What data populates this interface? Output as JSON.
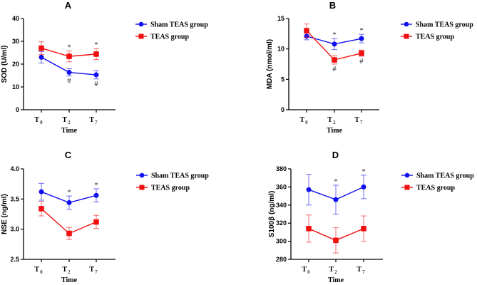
{
  "chart_data": [
    {
      "type": "line",
      "panel": "A",
      "title": "A",
      "xlabel": "Time",
      "ylabel": "SOD (U/ml)",
      "categories": [
        [
          "T",
          "0"
        ],
        [
          "T",
          "2"
        ],
        [
          "T",
          "7"
        ]
      ],
      "ylim": [
        0,
        40
      ],
      "yticks": [
        "0",
        "10",
        "20",
        "30",
        "40"
      ],
      "ytick_values": [
        0,
        10,
        20,
        30,
        40
      ],
      "legend_position": "right",
      "series": [
        {
          "name": "Sham TEAS group",
          "color": "#1010f0",
          "marker": "circle",
          "values": [
            23.0,
            16.4,
            15.3
          ],
          "errors": [
            2.5,
            1.6,
            1.8
          ]
        },
        {
          "name": "TEAS group",
          "color": "#f01010",
          "marker": "square",
          "values": [
            27.0,
            23.4,
            24.4
          ],
          "errors": [
            2.8,
            2.4,
            2.4
          ]
        }
      ],
      "annotations": [
        {
          "series": 1,
          "index": 1,
          "text": "*",
          "side": "above"
        },
        {
          "series": 1,
          "index": 2,
          "text": "*",
          "side": "above"
        },
        {
          "series": 0,
          "index": 1,
          "text": "#",
          "side": "below"
        },
        {
          "series": 0,
          "index": 2,
          "text": "#",
          "side": "below"
        }
      ]
    },
    {
      "type": "line",
      "panel": "B",
      "title": "B",
      "xlabel": "Time",
      "ylabel": "MDA (nmol/ml)",
      "categories": [
        [
          "T",
          "0"
        ],
        [
          "T",
          "2"
        ],
        [
          "T",
          "7"
        ]
      ],
      "ylim": [
        0,
        15
      ],
      "yticks": [
        "0",
        "5",
        "10",
        "15"
      ],
      "ytick_values": [
        0,
        5,
        10,
        15
      ],
      "legend_position": "right",
      "series": [
        {
          "name": "Sham TEAS group",
          "color": "#1010f0",
          "marker": "circle",
          "values": [
            12.1,
            10.8,
            11.7
          ],
          "errors": [
            0.6,
            0.9,
            0.7
          ]
        },
        {
          "name": "TEAS group",
          "color": "#f01010",
          "marker": "square",
          "values": [
            13.0,
            8.2,
            9.3
          ],
          "errors": [
            1.1,
            0.7,
            0.5
          ]
        }
      ],
      "annotations": [
        {
          "series": 0,
          "index": 1,
          "text": "*",
          "side": "above"
        },
        {
          "series": 0,
          "index": 2,
          "text": "*",
          "side": "above"
        },
        {
          "series": 1,
          "index": 1,
          "text": "#",
          "side": "below"
        },
        {
          "series": 1,
          "index": 2,
          "text": "#",
          "side": "below"
        }
      ]
    },
    {
      "type": "line",
      "panel": "C",
      "title": "C",
      "xlabel": "Time",
      "ylabel": "NSE (ng/ml)",
      "categories": [
        [
          "T",
          "0"
        ],
        [
          "T",
          "2"
        ],
        [
          "T",
          "7"
        ]
      ],
      "ylim": [
        2.5,
        4.0
      ],
      "yticks": [
        "2.5",
        "3.0",
        "3.5",
        "4.0"
      ],
      "ytick_values": [
        2.5,
        3.0,
        3.5,
        4.0
      ],
      "legend_position": "right",
      "series": [
        {
          "name": "Sham TEAS group",
          "color": "#1010f0",
          "marker": "circle",
          "values": [
            3.62,
            3.44,
            3.56
          ],
          "errors": [
            0.14,
            0.11,
            0.11
          ]
        },
        {
          "name": "TEAS group",
          "color": "#f01010",
          "marker": "square",
          "values": [
            3.34,
            2.93,
            3.12
          ],
          "errors": [
            0.12,
            0.1,
            0.11
          ]
        }
      ],
      "annotations": [
        {
          "series": 0,
          "index": 1,
          "text": "*",
          "side": "above"
        },
        {
          "series": 0,
          "index": 2,
          "text": "*",
          "side": "above"
        }
      ]
    },
    {
      "type": "line",
      "panel": "D",
      "title": "D",
      "xlabel": "Time",
      "ylabel": "S100β (ng/ml)",
      "categories": [
        [
          "T",
          "0"
        ],
        [
          "T",
          "2"
        ],
        [
          "T",
          "7"
        ]
      ],
      "ylim": [
        280,
        380
      ],
      "yticks": [
        "280",
        "300",
        "320",
        "340",
        "360",
        "380"
      ],
      "ytick_values": [
        280,
        300,
        320,
        340,
        360,
        380
      ],
      "legend_position": "right",
      "series": [
        {
          "name": "Sham TEAS group",
          "color": "#1010f0",
          "marker": "circle",
          "values": [
            357,
            346,
            360
          ],
          "errors": [
            17,
            16,
            13
          ]
        },
        {
          "name": "TEAS group",
          "color": "#f01010",
          "marker": "square",
          "values": [
            314,
            301,
            314
          ],
          "errors": [
            15,
            14,
            14
          ]
        }
      ],
      "annotations": [
        {
          "series": 0,
          "index": 1,
          "text": "*",
          "side": "above"
        },
        {
          "series": 0,
          "index": 2,
          "text": "*",
          "side": "above"
        }
      ]
    }
  ]
}
